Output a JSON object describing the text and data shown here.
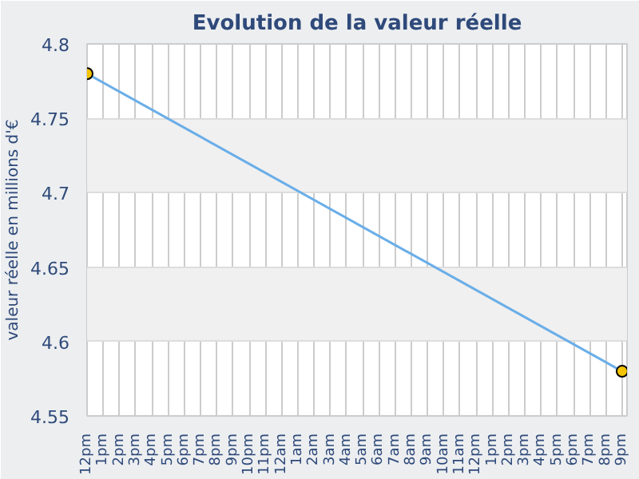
{
  "chart_data": {
    "type": "line",
    "title": "Evolution de la valeur réelle",
    "ylabel": "valeur réelle en millions d'€",
    "categories": [
      "12pm",
      "1pm",
      "2pm",
      "3pm",
      "4pm",
      "5pm",
      "6pm",
      "7pm",
      "8pm",
      "9pm",
      "10pm",
      "11pm",
      "12am",
      "1am",
      "2am",
      "3am",
      "4am",
      "5am",
      "6am",
      "7am",
      "8am",
      "9am",
      "10am",
      "11am",
      "12pm",
      "1pm",
      "2pm",
      "3pm",
      "4pm",
      "5pm",
      "6pm",
      "7pm",
      "8pm",
      "9pm"
    ],
    "series": [
      {
        "color": "#6aaee8",
        "values": [
          4.78,
          null,
          null,
          null,
          null,
          null,
          null,
          null,
          null,
          null,
          null,
          null,
          null,
          null,
          null,
          null,
          null,
          null,
          null,
          null,
          null,
          null,
          null,
          null,
          null,
          null,
          null,
          null,
          null,
          null,
          null,
          null,
          null,
          4.58
        ]
      }
    ],
    "marker": "circle",
    "line_style": "solid",
    "grid": true,
    "ylim": [
      4.55,
      4.8
    ],
    "yticks": [
      4.55,
      4.6,
      4.65,
      4.7,
      4.75,
      4.8
    ]
  }
}
